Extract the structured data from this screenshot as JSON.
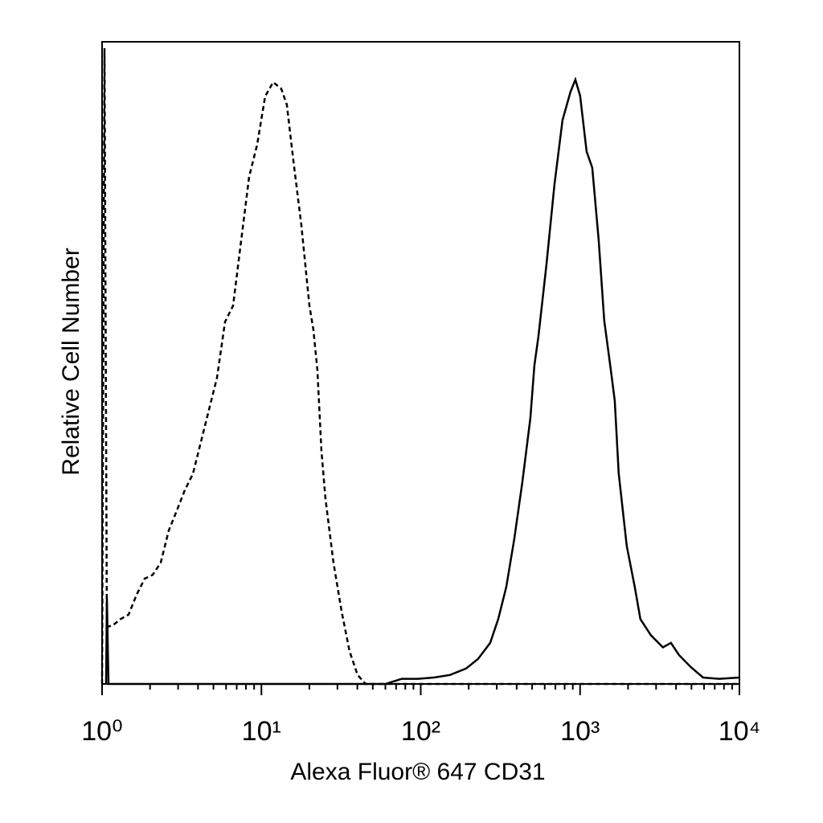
{
  "chart_data": {
    "type": "line",
    "xlabel": "Alexa Fluor® 647 CD31",
    "ylabel": "Relative Cell Number",
    "xscale": "log",
    "xlim": [
      1,
      10000
    ],
    "ylim": [
      0,
      100
    ],
    "xticks": [
      {
        "value": 1,
        "label": "10⁰"
      },
      {
        "value": 10,
        "label": "10¹"
      },
      {
        "value": 100,
        "label": "10²"
      },
      {
        "value": 1000,
        "label": "10³"
      },
      {
        "value": 10000,
        "label": "10⁴"
      }
    ],
    "xminorticks": [
      2,
      3,
      4,
      5,
      6,
      7,
      8,
      9,
      20,
      30,
      40,
      50,
      60,
      70,
      80,
      90,
      200,
      300,
      400,
      500,
      600,
      700,
      800,
      900,
      2000,
      3000,
      4000,
      5000,
      6000,
      7000,
      8000,
      9000
    ],
    "series": [
      {
        "color": "#000000",
        "style": "dashed",
        "x": [
          1,
          1.035,
          1.072,
          1.163,
          1.306,
          1.467,
          1.648,
          1.851,
          2.078,
          2.334,
          2.622,
          2.944,
          3.307,
          3.714,
          4.172,
          4.686,
          5.262,
          5.91,
          6.637,
          7.455,
          8.373,
          9.404,
          10.56,
          11.86,
          13.32,
          14.45,
          15.86,
          17.81,
          20.01,
          21.2,
          22.46,
          23.81,
          25.23,
          28.34,
          31.83,
          35.75,
          40.15,
          45.08,
          10000
        ],
        "values": [
          0,
          99.0,
          8.9,
          9.1,
          10.1,
          10.8,
          13.9,
          16.4,
          17.0,
          18.9,
          23.9,
          27.0,
          30.2,
          32.7,
          37.7,
          42.7,
          47.7,
          56.4,
          58.9,
          69.0,
          79.0,
          84.0,
          91.5,
          93.7,
          92.7,
          90.2,
          81.5,
          71.5,
          58.9,
          55.2,
          48.9,
          36.4,
          28.9,
          18.9,
          11.4,
          5.1,
          1.4,
          0,
          0
        ]
      },
      {
        "color": "#000000",
        "style": "solid",
        "x": [
          1.06,
          1.072,
          1.097,
          60.27,
          76.0,
          95.9,
          121.0,
          152.6,
          192.5,
          229.1,
          272.8,
          306.3,
          344.1,
          386.4,
          434.0,
          487.3,
          516.6,
          547.4,
          614.8,
          690.5,
          775.5,
          870.9,
          933.8,
          1001,
          1099,
          1192,
          1308,
          1418,
          1556,
          1650,
          1748,
          1963,
          2205,
          2391,
          2782,
          3311,
          3719,
          4177,
          4971,
          5916,
          7464,
          10000
        ],
        "values": [
          0,
          13.3,
          0,
          0,
          0.8,
          0.8,
          1.0,
          1.4,
          2.4,
          3.9,
          6.4,
          10.1,
          15.1,
          22.6,
          31.4,
          41.4,
          49.6,
          54.1,
          65.3,
          77.8,
          87.8,
          92.2,
          94.1,
          91.6,
          82.9,
          80.4,
          69.1,
          56.6,
          49.1,
          44.1,
          32.8,
          21.5,
          15.1,
          10.1,
          7.6,
          5.7,
          6.4,
          4.5,
          2.6,
          1.0,
          0.8,
          1.0
        ]
      }
    ]
  }
}
